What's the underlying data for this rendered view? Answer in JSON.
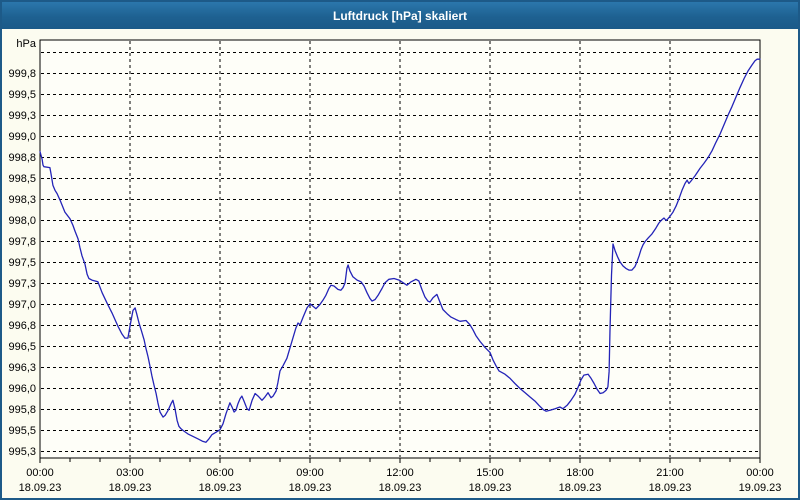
{
  "window": {
    "title": "Luftdruck [hPa] skaliert"
  },
  "chart_data": {
    "type": "line",
    "title": "Luftdruck [hPa] skaliert",
    "unit_label": "hPa",
    "xlabel": "",
    "ylabel": "hPa",
    "grid": "dashed",
    "legend": "none",
    "line_color": "#2424b8",
    "plot_bg": "#fefef8",
    "panel_bg": "#fcfcf0",
    "titlebar_color": "#1e6191",
    "ylim": [
      995.17,
      1000.15
    ],
    "xlim_hours": [
      0,
      24
    ],
    "y_axis": {
      "gridline_step_hpa": 0.25,
      "gridlines": [
        {
          "value": 1000.0,
          "label": ""
        },
        {
          "value": 999.75,
          "label": "999,8"
        },
        {
          "value": 999.5,
          "label": "999,5"
        },
        {
          "value": 999.25,
          "label": "999,3"
        },
        {
          "value": 999.0,
          "label": "999,0"
        },
        {
          "value": 998.75,
          "label": "998,8"
        },
        {
          "value": 998.5,
          "label": "998,5"
        },
        {
          "value": 998.25,
          "label": "998,3"
        },
        {
          "value": 998.0,
          "label": "998,0"
        },
        {
          "value": 997.75,
          "label": "997,8"
        },
        {
          "value": 997.5,
          "label": "997,5"
        },
        {
          "value": 997.25,
          "label": "997,3"
        },
        {
          "value": 997.0,
          "label": "997,0"
        },
        {
          "value": 996.75,
          "label": "996,8"
        },
        {
          "value": 996.5,
          "label": "996,5"
        },
        {
          "value": 996.25,
          "label": "996,3"
        },
        {
          "value": 996.0,
          "label": "996,0"
        },
        {
          "value": 995.75,
          "label": "995,8"
        },
        {
          "value": 995.5,
          "label": "995,5"
        },
        {
          "value": 995.25,
          "label": "995,3"
        }
      ]
    },
    "x_axis": {
      "minor_tick_every_hours": 1,
      "major_ticks": [
        {
          "hour": 0,
          "time": "00:00",
          "date": "18.09.23"
        },
        {
          "hour": 3,
          "time": "03:00",
          "date": "18.09.23"
        },
        {
          "hour": 6,
          "time": "06:00",
          "date": "18.09.23"
        },
        {
          "hour": 9,
          "time": "09:00",
          "date": "18.09.23"
        },
        {
          "hour": 12,
          "time": "12:00",
          "date": "18.09.23"
        },
        {
          "hour": 15,
          "time": "15:00",
          "date": "18.09.23"
        },
        {
          "hour": 18,
          "time": "18:00",
          "date": "18.09.23"
        },
        {
          "hour": 21,
          "time": "21:00",
          "date": "18.09.23"
        },
        {
          "hour": 24,
          "time": "00:00",
          "date": "19.09.23"
        }
      ]
    },
    "series": [
      {
        "name": "Luftdruck",
        "points": [
          [
            0.0,
            998.82
          ],
          [
            0.07,
            998.73
          ],
          [
            0.1,
            998.66
          ],
          [
            0.13,
            998.64
          ],
          [
            0.33,
            998.63
          ],
          [
            0.37,
            998.55
          ],
          [
            0.43,
            998.42
          ],
          [
            0.5,
            998.36
          ],
          [
            0.57,
            998.32
          ],
          [
            0.67,
            998.24
          ],
          [
            0.83,
            998.1
          ],
          [
            1.0,
            998.02
          ],
          [
            1.1,
            997.94
          ],
          [
            1.17,
            997.87
          ],
          [
            1.27,
            997.78
          ],
          [
            1.33,
            997.68
          ],
          [
            1.4,
            997.58
          ],
          [
            1.5,
            997.48
          ],
          [
            1.57,
            997.36
          ],
          [
            1.63,
            997.31
          ],
          [
            1.73,
            997.29
          ],
          [
            1.93,
            997.27
          ],
          [
            2.07,
            997.14
          ],
          [
            2.23,
            997.02
          ],
          [
            2.4,
            996.9
          ],
          [
            2.5,
            996.82
          ],
          [
            2.6,
            996.74
          ],
          [
            2.73,
            996.65
          ],
          [
            2.83,
            996.6
          ],
          [
            2.93,
            996.6
          ],
          [
            3.03,
            996.8
          ],
          [
            3.1,
            996.93
          ],
          [
            3.17,
            996.96
          ],
          [
            3.23,
            996.88
          ],
          [
            3.3,
            996.78
          ],
          [
            3.37,
            996.7
          ],
          [
            3.47,
            996.58
          ],
          [
            3.53,
            996.48
          ],
          [
            3.6,
            996.38
          ],
          [
            3.67,
            996.26
          ],
          [
            3.73,
            996.15
          ],
          [
            3.8,
            996.04
          ],
          [
            3.87,
            995.94
          ],
          [
            3.93,
            995.83
          ],
          [
            4.0,
            995.72
          ],
          [
            4.1,
            995.66
          ],
          [
            4.17,
            995.68
          ],
          [
            4.27,
            995.74
          ],
          [
            4.37,
            995.82
          ],
          [
            4.43,
            995.86
          ],
          [
            4.5,
            995.76
          ],
          [
            4.57,
            995.62
          ],
          [
            4.63,
            995.55
          ],
          [
            4.7,
            995.52
          ],
          [
            4.77,
            995.5
          ],
          [
            4.93,
            995.46
          ],
          [
            5.1,
            995.43
          ],
          [
            5.27,
            995.4
          ],
          [
            5.43,
            995.37
          ],
          [
            5.53,
            995.36
          ],
          [
            5.63,
            995.4
          ],
          [
            5.73,
            995.45
          ],
          [
            5.87,
            995.48
          ],
          [
            6.0,
            995.51
          ],
          [
            6.1,
            995.58
          ],
          [
            6.2,
            995.7
          ],
          [
            6.33,
            995.83
          ],
          [
            6.4,
            995.78
          ],
          [
            6.47,
            995.72
          ],
          [
            6.53,
            995.74
          ],
          [
            6.6,
            995.82
          ],
          [
            6.67,
            995.88
          ],
          [
            6.73,
            995.91
          ],
          [
            6.8,
            995.85
          ],
          [
            6.9,
            995.76
          ],
          [
            6.97,
            995.74
          ],
          [
            7.07,
            995.86
          ],
          [
            7.17,
            995.94
          ],
          [
            7.27,
            995.91
          ],
          [
            7.4,
            995.86
          ],
          [
            7.5,
            995.9
          ],
          [
            7.6,
            995.95
          ],
          [
            7.7,
            995.89
          ],
          [
            7.77,
            995.91
          ],
          [
            7.87,
            995.97
          ],
          [
            7.93,
            996.07
          ],
          [
            8.0,
            996.21
          ],
          [
            8.1,
            996.27
          ],
          [
            8.23,
            996.36
          ],
          [
            8.33,
            996.48
          ],
          [
            8.43,
            996.6
          ],
          [
            8.53,
            996.72
          ],
          [
            8.6,
            996.78
          ],
          [
            8.67,
            996.76
          ],
          [
            8.77,
            996.85
          ],
          [
            8.9,
            996.96
          ],
          [
            9.0,
            997.01
          ],
          [
            9.1,
            996.98
          ],
          [
            9.2,
            996.95
          ],
          [
            9.33,
            997.0
          ],
          [
            9.43,
            997.05
          ],
          [
            9.53,
            997.11
          ],
          [
            9.63,
            997.19
          ],
          [
            9.7,
            997.23
          ],
          [
            9.8,
            997.22
          ],
          [
            9.93,
            997.18
          ],
          [
            10.03,
            997.17
          ],
          [
            10.1,
            997.2
          ],
          [
            10.17,
            997.26
          ],
          [
            10.23,
            997.43
          ],
          [
            10.27,
            997.47
          ],
          [
            10.33,
            997.4
          ],
          [
            10.43,
            997.33
          ],
          [
            10.57,
            997.29
          ],
          [
            10.7,
            997.27
          ],
          [
            10.8,
            997.22
          ],
          [
            10.9,
            997.14
          ],
          [
            11.0,
            997.07
          ],
          [
            11.07,
            997.04
          ],
          [
            11.17,
            997.06
          ],
          [
            11.27,
            997.11
          ],
          [
            11.4,
            997.19
          ],
          [
            11.5,
            997.26
          ],
          [
            11.63,
            997.3
          ],
          [
            11.8,
            997.31
          ],
          [
            11.97,
            997.29
          ],
          [
            12.1,
            997.26
          ],
          [
            12.23,
            997.23
          ],
          [
            12.37,
            997.27
          ],
          [
            12.53,
            997.3
          ],
          [
            12.63,
            997.28
          ],
          [
            12.73,
            997.18
          ],
          [
            12.83,
            997.09
          ],
          [
            12.93,
            997.04
          ],
          [
            13.0,
            997.03
          ],
          [
            13.1,
            997.08
          ],
          [
            13.23,
            997.12
          ],
          [
            13.33,
            997.03
          ],
          [
            13.43,
            996.94
          ],
          [
            13.57,
            996.89
          ],
          [
            13.7,
            996.85
          ],
          [
            13.87,
            996.82
          ],
          [
            14.0,
            996.8
          ],
          [
            14.2,
            996.81
          ],
          [
            14.33,
            996.76
          ],
          [
            14.43,
            996.7
          ],
          [
            14.53,
            996.63
          ],
          [
            14.67,
            996.56
          ],
          [
            14.83,
            996.49
          ],
          [
            15.0,
            996.43
          ],
          [
            15.1,
            996.34
          ],
          [
            15.2,
            996.27
          ],
          [
            15.3,
            996.21
          ],
          [
            15.5,
            996.17
          ],
          [
            15.67,
            996.12
          ],
          [
            15.83,
            996.06
          ],
          [
            16.0,
            996.0
          ],
          [
            16.17,
            995.95
          ],
          [
            16.33,
            995.9
          ],
          [
            16.5,
            995.85
          ],
          [
            16.63,
            995.8
          ],
          [
            16.77,
            995.75
          ],
          [
            16.87,
            995.73
          ],
          [
            17.0,
            995.74
          ],
          [
            17.17,
            995.76
          ],
          [
            17.33,
            995.78
          ],
          [
            17.43,
            995.76
          ],
          [
            17.57,
            995.8
          ],
          [
            17.7,
            995.86
          ],
          [
            17.83,
            995.93
          ],
          [
            17.93,
            996.01
          ],
          [
            18.03,
            996.1
          ],
          [
            18.13,
            996.16
          ],
          [
            18.27,
            996.17
          ],
          [
            18.37,
            996.12
          ],
          [
            18.47,
            996.06
          ],
          [
            18.57,
            995.99
          ],
          [
            18.67,
            995.94
          ],
          [
            18.77,
            995.95
          ],
          [
            18.87,
            995.98
          ],
          [
            18.93,
            996.02
          ],
          [
            18.97,
            996.2
          ],
          [
            19.0,
            996.7
          ],
          [
            19.05,
            997.35
          ],
          [
            19.1,
            997.72
          ],
          [
            19.17,
            997.64
          ],
          [
            19.25,
            997.57
          ],
          [
            19.33,
            997.51
          ],
          [
            19.43,
            997.46
          ],
          [
            19.53,
            997.43
          ],
          [
            19.63,
            997.41
          ],
          [
            19.73,
            997.41
          ],
          [
            19.83,
            997.45
          ],
          [
            19.9,
            997.51
          ],
          [
            19.97,
            997.58
          ],
          [
            20.03,
            997.65
          ],
          [
            20.1,
            997.71
          ],
          [
            20.17,
            997.75
          ],
          [
            20.27,
            997.79
          ],
          [
            20.4,
            997.84
          ],
          [
            20.53,
            997.91
          ],
          [
            20.63,
            997.97
          ],
          [
            20.73,
            998.01
          ],
          [
            20.8,
            998.03
          ],
          [
            20.87,
            998.0
          ],
          [
            20.93,
            998.02
          ],
          [
            21.0,
            998.05
          ],
          [
            21.1,
            998.1
          ],
          [
            21.2,
            998.17
          ],
          [
            21.3,
            998.26
          ],
          [
            21.4,
            998.36
          ],
          [
            21.5,
            998.44
          ],
          [
            21.57,
            998.48
          ],
          [
            21.63,
            998.44
          ],
          [
            21.7,
            998.47
          ],
          [
            21.83,
            998.53
          ],
          [
            22.0,
            998.62
          ],
          [
            22.13,
            998.68
          ],
          [
            22.27,
            998.75
          ],
          [
            22.4,
            998.83
          ],
          [
            22.53,
            998.93
          ],
          [
            22.67,
            999.03
          ],
          [
            22.8,
            999.14
          ],
          [
            22.93,
            999.25
          ],
          [
            23.07,
            999.36
          ],
          [
            23.2,
            999.47
          ],
          [
            23.33,
            999.58
          ],
          [
            23.47,
            999.69
          ],
          [
            23.6,
            999.78
          ],
          [
            23.73,
            999.85
          ],
          [
            23.83,
            999.9
          ],
          [
            23.9,
            999.92
          ],
          [
            24.0,
            999.92
          ]
        ]
      }
    ]
  }
}
